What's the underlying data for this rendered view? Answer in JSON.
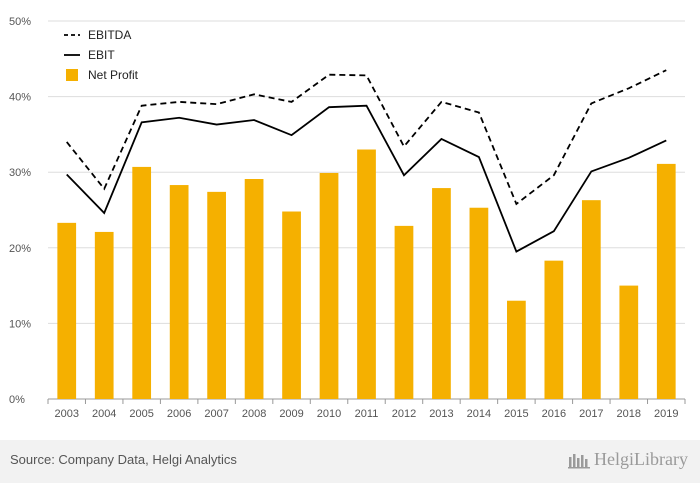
{
  "source": "Source: Company Data, Helgi Analytics",
  "brand": {
    "name": "HelgiLibrary"
  },
  "colors": {
    "bar": "#f5b000",
    "line": "#000000",
    "grid": "#dddddd",
    "axis_text": "#555555"
  },
  "chart_data": {
    "type": "bar",
    "categories": [
      "2003",
      "2004",
      "2005",
      "2006",
      "2007",
      "2008",
      "2009",
      "2010",
      "2011",
      "2012",
      "2013",
      "2014",
      "2015",
      "2016",
      "2017",
      "2018",
      "2019"
    ],
    "series": [
      {
        "name": "Net Profit",
        "type": "bar",
        "values": [
          23.3,
          22.1,
          30.7,
          28.3,
          27.4,
          29.1,
          24.8,
          29.9,
          33.0,
          22.9,
          27.9,
          25.3,
          13.0,
          18.3,
          26.3,
          15.0,
          31.1
        ]
      },
      {
        "name": "EBITDA",
        "type": "line",
        "style": "dashed",
        "values": [
          34.0,
          27.8,
          38.8,
          39.3,
          39.0,
          40.3,
          39.3,
          42.9,
          42.8,
          33.4,
          39.3,
          37.9,
          25.8,
          29.6,
          39.1,
          41.1,
          43.5
        ]
      },
      {
        "name": "EBIT",
        "type": "line",
        "style": "solid",
        "values": [
          29.7,
          24.6,
          36.6,
          37.2,
          36.3,
          36.9,
          34.9,
          38.6,
          38.8,
          29.6,
          34.4,
          32.0,
          19.5,
          22.2,
          30.1,
          31.9,
          34.2
        ]
      }
    ],
    "y_ticks": [
      "0%",
      "10%",
      "20%",
      "30%",
      "40%",
      "50%"
    ],
    "ylim": [
      0,
      50
    ],
    "legend": [
      "EBITDA",
      "EBIT",
      "Net Profit"
    ],
    "legend_position": "top-left",
    "grid": true
  }
}
